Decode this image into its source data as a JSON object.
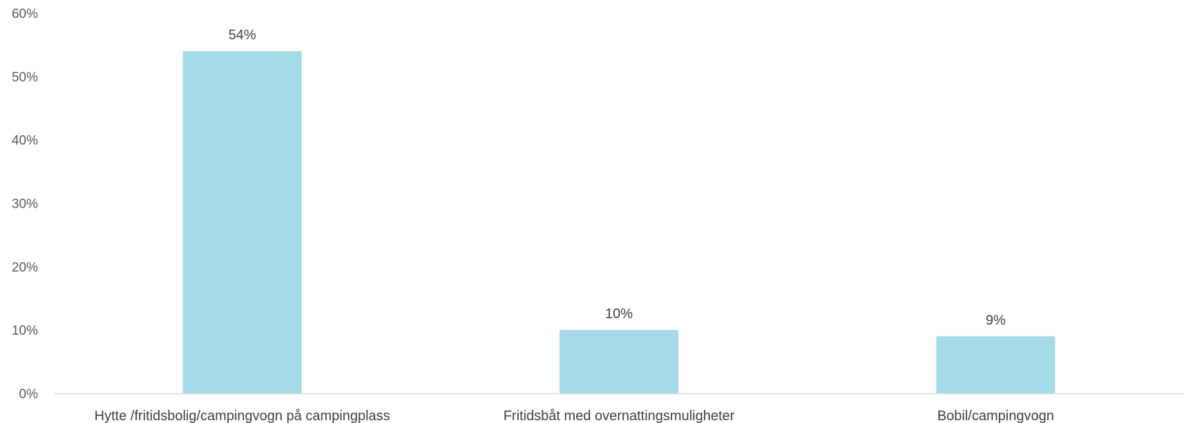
{
  "chart_data": {
    "type": "bar",
    "categories": [
      "Hytte /fritidsbolig/campingvogn på campingplass",
      "Fritidsbåt med overnattingsmuligheter",
      "Bobil/campingvogn"
    ],
    "values": [
      54,
      10,
      9
    ],
    "data_labels": [
      "54%",
      "10%",
      "9%"
    ],
    "yticks": [
      "0%",
      "10%",
      "20%",
      "30%",
      "40%",
      "50%",
      "60%"
    ],
    "ylim": [
      0,
      60
    ],
    "grid": false,
    "legend": "none",
    "bar_color": "#a5dbe8",
    "axis_color": "#d9d9d9"
  }
}
